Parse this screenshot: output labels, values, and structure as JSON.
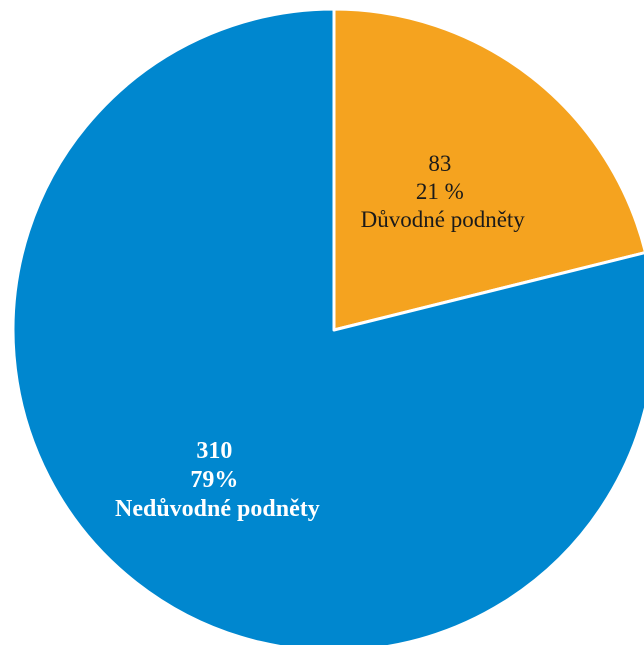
{
  "chart_data": {
    "type": "pie",
    "categories": [
      "Důvodné podněty",
      "Nedůvodné podněty"
    ],
    "values": [
      83,
      310
    ],
    "percent_labels": [
      "21 %",
      "79%"
    ],
    "colors": [
      "#F5A31F",
      "#0087CF"
    ],
    "start_angle_deg": 0,
    "direction": "clockwise",
    "title": "",
    "legend": "none"
  }
}
